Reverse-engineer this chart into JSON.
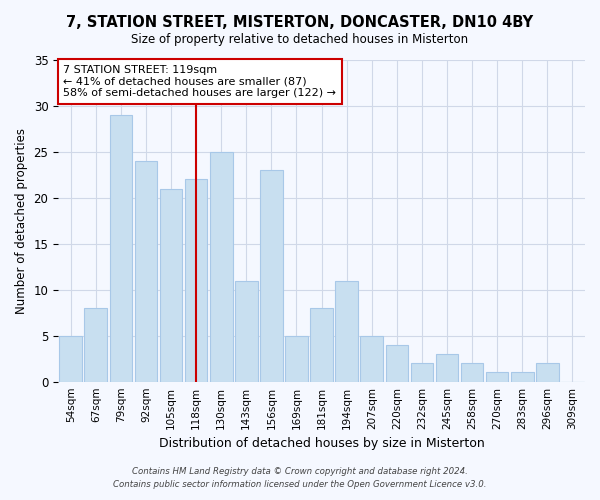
{
  "title": "7, STATION STREET, MISTERTON, DONCASTER, DN10 4BY",
  "subtitle": "Size of property relative to detached houses in Misterton",
  "xlabel": "Distribution of detached houses by size in Misterton",
  "ylabel": "Number of detached properties",
  "bar_labels": [
    "54sqm",
    "67sqm",
    "79sqm",
    "92sqm",
    "105sqm",
    "118sqm",
    "130sqm",
    "143sqm",
    "156sqm",
    "169sqm",
    "181sqm",
    "194sqm",
    "207sqm",
    "220sqm",
    "232sqm",
    "245sqm",
    "258sqm",
    "270sqm",
    "283sqm",
    "296sqm",
    "309sqm"
  ],
  "bar_values": [
    5,
    8,
    29,
    24,
    21,
    22,
    25,
    11,
    23,
    5,
    8,
    11,
    5,
    4,
    2,
    3,
    2,
    1,
    1,
    2,
    0
  ],
  "bar_color": "#c8dff0",
  "bar_edge_color": "#a8c8e8",
  "vline_x": 5.0,
  "vline_color": "#cc0000",
  "ylim": [
    0,
    35
  ],
  "yticks": [
    0,
    5,
    10,
    15,
    20,
    25,
    30,
    35
  ],
  "annotation_title": "7 STATION STREET: 119sqm",
  "annotation_line1": "← 41% of detached houses are smaller (87)",
  "annotation_line2": "58% of semi-detached houses are larger (122) →",
  "annotation_box_color": "#ffffff",
  "annotation_box_edge": "#cc0000",
  "footer1": "Contains HM Land Registry data © Crown copyright and database right 2024.",
  "footer2": "Contains public sector information licensed under the Open Government Licence v3.0.",
  "background_color": "#f5f8ff",
  "plot_background": "#f5f8ff",
  "grid_color": "#d0d8e8"
}
